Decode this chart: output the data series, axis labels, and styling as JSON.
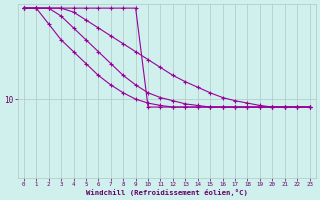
{
  "title": "",
  "xlabel": "Windchill (Refroidissement éolien,°C)",
  "ylabel": "",
  "bg_color": "#cff0ec",
  "line_color": "#990099",
  "grid_color": "#b0c8c4",
  "text_color": "#660066",
  "xlim": [
    -0.5,
    23.5
  ],
  "ylim": [
    0,
    22
  ],
  "yticks": [
    10
  ],
  "xticks": [
    0,
    1,
    2,
    3,
    4,
    5,
    6,
    7,
    8,
    9,
    10,
    11,
    12,
    13,
    14,
    15,
    16,
    17,
    18,
    19,
    20,
    21,
    22,
    23
  ],
  "lines": [
    {
      "x": [
        0,
        1,
        2,
        3,
        4,
        5,
        6,
        7,
        8,
        9,
        10,
        11,
        12,
        13,
        14,
        15,
        16,
        17,
        18,
        19,
        20,
        21,
        22,
        23
      ],
      "y": [
        21.5,
        21.5,
        21.5,
        21.5,
        21.5,
        21.5,
        21.5,
        21.5,
        21.5,
        21.5,
        9.0,
        9.0,
        9.0,
        9.0,
        9.0,
        9.0,
        9.0,
        9.0,
        9.0,
        9.0,
        9.0,
        9.0,
        9.0,
        9.0
      ]
    },
    {
      "x": [
        0,
        1,
        2,
        3,
        4,
        5,
        6,
        7,
        8,
        9,
        10,
        11,
        12,
        13,
        14,
        15,
        16,
        17,
        18,
        19,
        20,
        21,
        22,
        23
      ],
      "y": [
        21.5,
        21.5,
        19.5,
        17.5,
        16.0,
        14.5,
        13.0,
        11.8,
        10.8,
        10.0,
        9.5,
        9.2,
        9.0,
        9.0,
        9.0,
        9.0,
        9.0,
        9.0,
        9.0,
        9.0,
        9.0,
        9.0,
        9.0,
        9.0
      ]
    },
    {
      "x": [
        0,
        1,
        2,
        3,
        4,
        5,
        6,
        7,
        8,
        9,
        10,
        11,
        12,
        13,
        14,
        15,
        16,
        17,
        18,
        19,
        20,
        21,
        22,
        23
      ],
      "y": [
        21.5,
        21.5,
        21.5,
        20.5,
        19.0,
        17.5,
        16.0,
        14.5,
        13.0,
        11.8,
        10.8,
        10.2,
        9.8,
        9.4,
        9.2,
        9.0,
        9.0,
        9.0,
        9.0,
        9.0,
        9.0,
        9.0,
        9.0,
        9.0
      ]
    },
    {
      "x": [
        0,
        1,
        2,
        3,
        4,
        5,
        6,
        7,
        8,
        9,
        10,
        11,
        12,
        13,
        14,
        15,
        16,
        17,
        18,
        19,
        20,
        21,
        22,
        23
      ],
      "y": [
        21.5,
        21.5,
        21.5,
        21.5,
        21.0,
        20.0,
        19.0,
        18.0,
        17.0,
        16.0,
        15.0,
        14.0,
        13.0,
        12.2,
        11.5,
        10.8,
        10.2,
        9.8,
        9.5,
        9.2,
        9.0,
        9.0,
        9.0,
        9.0
      ]
    }
  ]
}
